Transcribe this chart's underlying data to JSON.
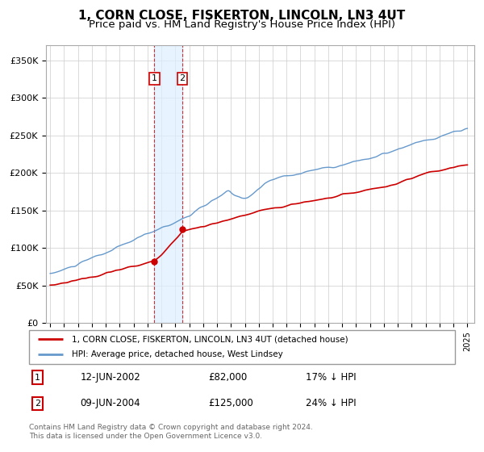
{
  "title": "1, CORN CLOSE, FISKERTON, LINCOLN, LN3 4UT",
  "subtitle": "Price paid vs. HM Land Registry's House Price Index (HPI)",
  "title_fontsize": 11,
  "subtitle_fontsize": 9.5,
  "ylabel_ticks": [
    "£0",
    "£50K",
    "£100K",
    "£150K",
    "£200K",
    "£250K",
    "£300K",
    "£350K"
  ],
  "ylabel_values": [
    0,
    50000,
    100000,
    150000,
    200000,
    250000,
    300000,
    350000
  ],
  "ylim": [
    0,
    370000
  ],
  "red_line_color": "#cc0000",
  "blue_line_color": "#6699cc",
  "grid_color": "#cccccc",
  "transaction1_year": 2002,
  "transaction1_month": 6,
  "transaction1_price": 82000,
  "transaction1_label": "£82,000",
  "transaction1_date": "12-JUN-2002",
  "transaction1_hpi": "17% ↓ HPI",
  "transaction2_year": 2004,
  "transaction2_month": 6,
  "transaction2_price": 125000,
  "transaction2_label": "£125,000",
  "transaction2_date": "09-JUN-2004",
  "transaction2_hpi": "24% ↓ HPI",
  "legend_line1": "1, CORN CLOSE, FISKERTON, LINCOLN, LN3 4UT (detached house)",
  "legend_line2": "HPI: Average price, detached house, West Lindsey",
  "footnote": "Contains HM Land Registry data © Crown copyright and database right 2024.\nThis data is licensed under the Open Government Licence v3.0.",
  "xstart_year": 1995,
  "xend_year": 2025,
  "background_color": "#ffffff"
}
